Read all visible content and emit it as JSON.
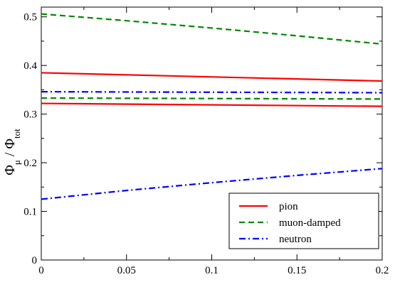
{
  "chart_data": {
    "type": "line",
    "title": "",
    "xlabel": "",
    "ylabel": {
      "main": "Φ",
      "main_sub": "μ",
      "separator": " / ",
      "denom": "Φ",
      "denom_sub": "tot"
    },
    "xlim": [
      0,
      0.2
    ],
    "ylim": [
      0,
      0.52
    ],
    "x_ticks": [
      0,
      0.05,
      0.1,
      0.15,
      0.2
    ],
    "x_tick_labels": [
      "0",
      "0.05",
      "0.1",
      "0.15",
      "0.2"
    ],
    "y_ticks": [
      0,
      0.1,
      0.2,
      0.3,
      0.4,
      0.5
    ],
    "y_tick_labels": [
      "0",
      "0.1",
      "0.2",
      "0.3",
      "0.4",
      "0.5"
    ],
    "grid": false,
    "legend_position": "bottom-right",
    "legend": [
      {
        "label": "pion",
        "color": "#ff0000",
        "style": "solid"
      },
      {
        "label": "muon-damped",
        "color": "#008800",
        "style": "dashed"
      },
      {
        "label": "neutron",
        "color": "#0000ff",
        "style": "dash-dot"
      }
    ],
    "series": [
      {
        "group": "pion",
        "color": "#ff0000",
        "style": "solid",
        "x": [
          0,
          0.2
        ],
        "y": [
          0.385,
          0.368
        ]
      },
      {
        "group": "pion",
        "color": "#ff0000",
        "style": "solid",
        "x": [
          0,
          0.2
        ],
        "y": [
          0.322,
          0.316
        ]
      },
      {
        "group": "muon-damped",
        "color": "#008800",
        "style": "dashed",
        "x": [
          0,
          0.05,
          0.1,
          0.15,
          0.2
        ],
        "y": [
          0.506,
          0.492,
          0.477,
          0.461,
          0.444
        ]
      },
      {
        "group": "muon-damped",
        "color": "#008800",
        "style": "dashed",
        "x": [
          0,
          0.2
        ],
        "y": [
          0.333,
          0.331
        ]
      },
      {
        "group": "neutron",
        "color": "#0000ff",
        "style": "dash-dot",
        "x": [
          0,
          0.2
        ],
        "y": [
          0.346,
          0.344
        ]
      },
      {
        "group": "neutron",
        "color": "#0000ff",
        "style": "dash-dot",
        "x": [
          0,
          0.05,
          0.1,
          0.15,
          0.2
        ],
        "y": [
          0.125,
          0.143,
          0.159,
          0.174,
          0.188
        ]
      }
    ]
  }
}
